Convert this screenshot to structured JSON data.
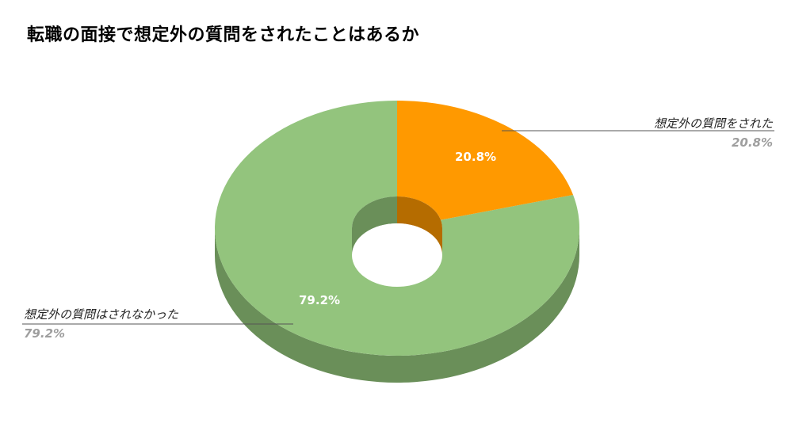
{
  "title": "転職の面接で想定外の質問をされたことはあるか",
  "chart_data": {
    "type": "pie",
    "title": "転職の面接で想定外の質問をされたことはあるか",
    "style": "3d-donut",
    "slices": [
      {
        "label": "想定外の質問をされた",
        "value": 20.8,
        "display": "20.8%",
        "color": "#ff9900",
        "side_color": "#b56c00"
      },
      {
        "label": "想定外の質問はされなかった",
        "value": 79.2,
        "display": "79.2%",
        "color": "#93c47d",
        "side_color": "#6a8f59"
      }
    ]
  }
}
